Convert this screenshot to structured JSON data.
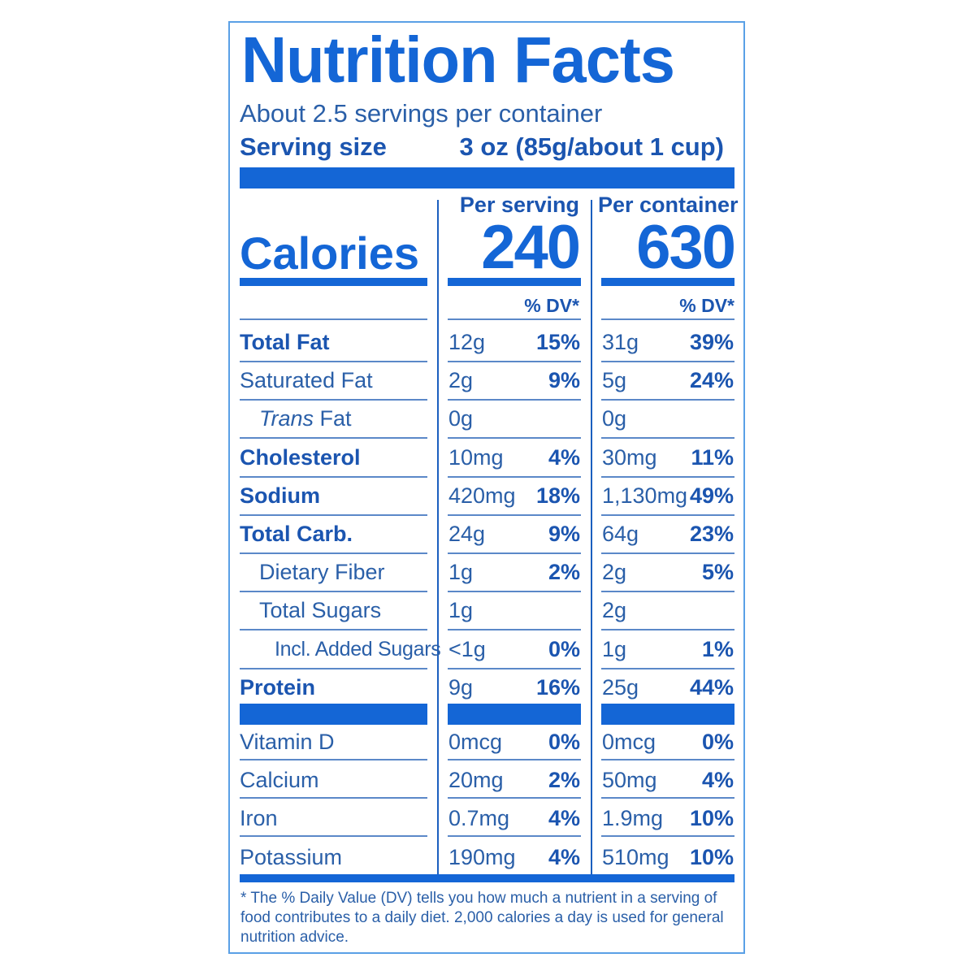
{
  "title": "Nutrition Facts",
  "servings_per_container": "About 2.5 servings per container",
  "serving_size": {
    "label": "Serving size",
    "value": "3 oz (85g/about 1 cup)"
  },
  "columns": {
    "per_serving": "Per serving",
    "per_container": "Per container"
  },
  "calories": {
    "label": "Calories",
    "per_serving": "240",
    "per_container": "630"
  },
  "dv_header": "% DV*",
  "nutrients": [
    {
      "label": "Total Fat",
      "bold": true,
      "indent": 0,
      "serv_amt": "12g",
      "serv_dv": "15%",
      "cont_amt": "31g",
      "cont_dv": "39%"
    },
    {
      "label": "Saturated Fat",
      "bold": false,
      "indent": 0,
      "serv_amt": "2g",
      "serv_dv": "9%",
      "cont_amt": "5g",
      "cont_dv": "24%"
    },
    {
      "label_italic": "Trans",
      "label": " Fat",
      "bold": false,
      "indent": 1,
      "serv_amt": "0g",
      "serv_dv": "",
      "cont_amt": "0g",
      "cont_dv": ""
    },
    {
      "label": "Cholesterol",
      "bold": true,
      "indent": 0,
      "serv_amt": "10mg",
      "serv_dv": "4%",
      "cont_amt": "30mg",
      "cont_dv": "11%"
    },
    {
      "label": "Sodium",
      "bold": true,
      "indent": 0,
      "serv_amt": "420mg",
      "serv_dv": "18%",
      "cont_amt": "1,130mg",
      "cont_dv": "49%"
    },
    {
      "label": "Total Carb.",
      "bold": true,
      "indent": 0,
      "serv_amt": "24g",
      "serv_dv": "9%",
      "cont_amt": "64g",
      "cont_dv": "23%"
    },
    {
      "label": "Dietary Fiber",
      "bold": false,
      "indent": 1,
      "serv_amt": "1g",
      "serv_dv": "2%",
      "cont_amt": "2g",
      "cont_dv": "5%"
    },
    {
      "label": "Total Sugars",
      "bold": false,
      "indent": 1,
      "serv_amt": "1g",
      "serv_dv": "",
      "cont_amt": "2g",
      "cont_dv": ""
    },
    {
      "label": "Incl. Added Sugars",
      "bold": false,
      "indent": 2,
      "serv_amt": "<1g",
      "serv_dv": "0%",
      "cont_amt": "1g",
      "cont_dv": "1%"
    },
    {
      "label": "Protein",
      "bold": true,
      "indent": 0,
      "serv_amt": "9g",
      "serv_dv": "16%",
      "cont_amt": "25g",
      "cont_dv": "44%"
    }
  ],
  "vitamins": [
    {
      "label": "Vitamin D",
      "serv_amt": "0mcg",
      "serv_dv": "0%",
      "cont_amt": "0mcg",
      "cont_dv": "0%"
    },
    {
      "label": "Calcium",
      "serv_amt": "20mg",
      "serv_dv": "2%",
      "cont_amt": "50mg",
      "cont_dv": "4%"
    },
    {
      "label": "Iron",
      "serv_amt": "0.7mg",
      "serv_dv": "4%",
      "cont_amt": "1.9mg",
      "cont_dv": "10%"
    },
    {
      "label": "Potassium",
      "serv_amt": "190mg",
      "serv_dv": "4%",
      "cont_amt": "510mg",
      "cont_dv": "10%"
    }
  ],
  "footnote": "* The % Daily Value (DV) tells you how much a nutrient in a serving of food contributes to a daily diet. 2,000 calories a day is used for general nutrition advice.",
  "colors": {
    "label_blue": "#1466d6",
    "text_blue": "#1b55b0"
  }
}
